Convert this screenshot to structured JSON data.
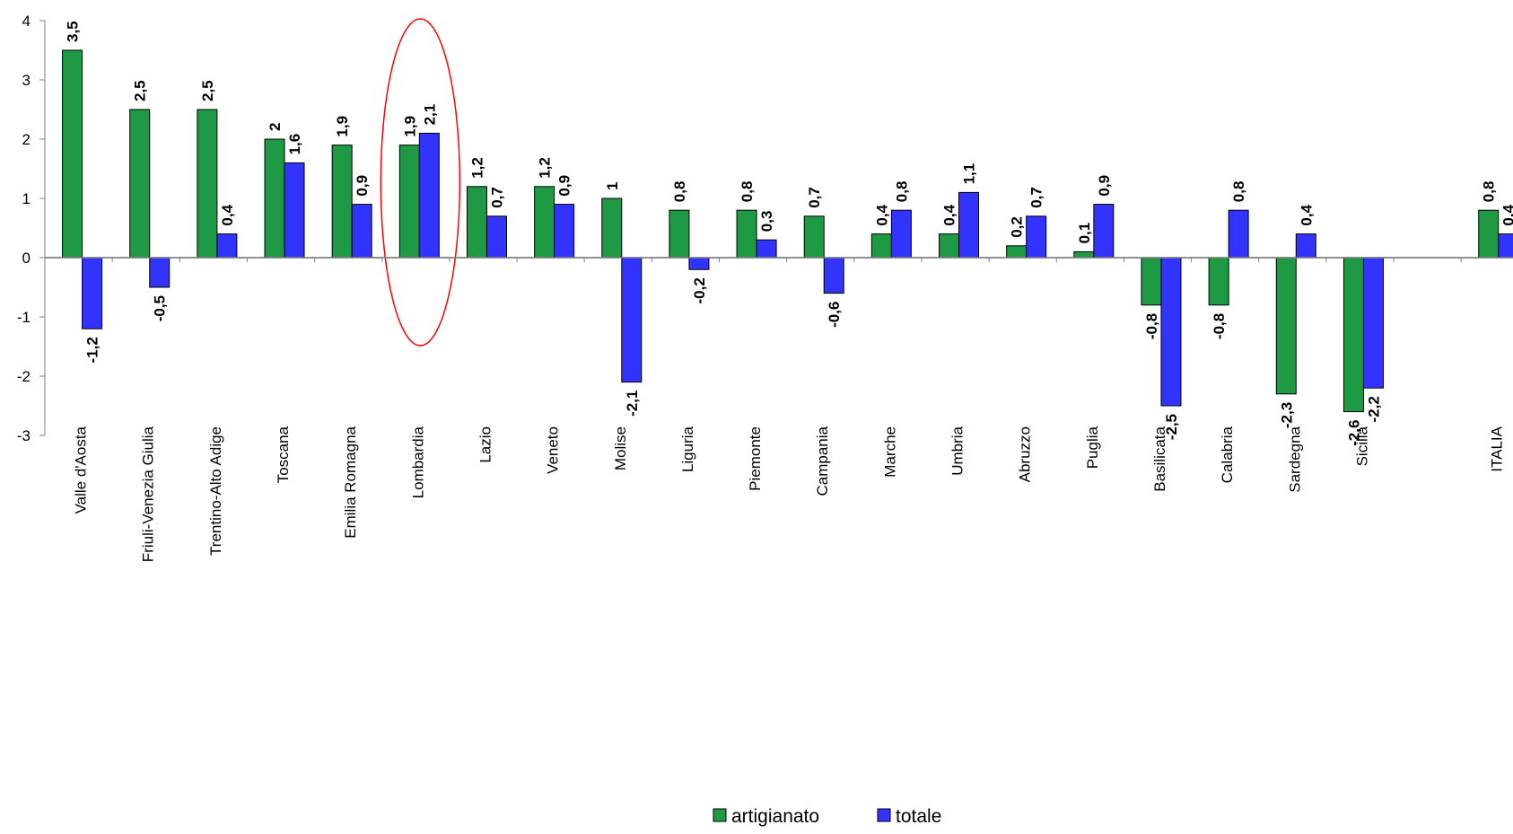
{
  "chart_data": {
    "type": "bar",
    "categories": [
      "Valle d'Aosta",
      "Friuli-Venezia Giulia",
      "Trentino-Alto Adige",
      "Toscana",
      "Emilia Romagna",
      "Lombardia",
      "Lazio",
      "Veneto",
      "Molise",
      "Liguria",
      "Piemonte",
      "Campania",
      "Marche",
      "Umbria",
      "Abruzzo",
      "Puglia",
      "Basilicata",
      "Calabria",
      "Sardegna",
      "Sicilia",
      "",
      "ITALIA"
    ],
    "series": [
      {
        "name": "artigianato",
        "color": "#1e9a45",
        "values": [
          3.5,
          2.5,
          2.5,
          2,
          1.9,
          1.9,
          1.2,
          1.2,
          1,
          0.8,
          0.8,
          0.7,
          0.4,
          0.4,
          0.2,
          0.1,
          -0.8,
          -0.8,
          -2.3,
          -2.6,
          null,
          0.8
        ],
        "labels": [
          "3,5",
          "2,5",
          "2,5",
          "2",
          "1,9",
          "1,9",
          "1,2",
          "1,2",
          "1",
          "0,8",
          "0,8",
          "0,7",
          "0,4",
          "0,4",
          "0,2",
          "0,1",
          "-0,8",
          "-0,8",
          "-2,3",
          "-2,6",
          "",
          "0,8"
        ]
      },
      {
        "name": "totale",
        "color": "#3333ff",
        "values": [
          -1.2,
          -0.5,
          0.4,
          1.6,
          0.9,
          2.1,
          0.7,
          0.9,
          -2.1,
          -0.2,
          0.3,
          -0.6,
          0.8,
          1.1,
          0.7,
          0.9,
          -2.5,
          0.8,
          0.4,
          -2.2,
          null,
          0.4
        ],
        "labels": [
          "-1,2",
          "-0,5",
          "0,4",
          "1,6",
          "0,9",
          "2,1",
          "0,7",
          "0,9",
          "-2,1",
          "-0,2",
          "0,3",
          "-0,6",
          "0,8",
          "1,1",
          "0,7",
          "0,9",
          "-2,5",
          "0,8",
          "0,4",
          "-2,2",
          "",
          "0,4"
        ]
      }
    ],
    "yticks": [
      "4",
      "3",
      "2",
      "1",
      "0",
      "-1",
      "-2",
      "-3"
    ],
    "ylim": [
      -3,
      4
    ],
    "highlight": "Lombardia",
    "highlight_color": "#ff0000",
    "legend_position": "bottom-center",
    "title": "",
    "xlabel": "",
    "ylabel": ""
  }
}
